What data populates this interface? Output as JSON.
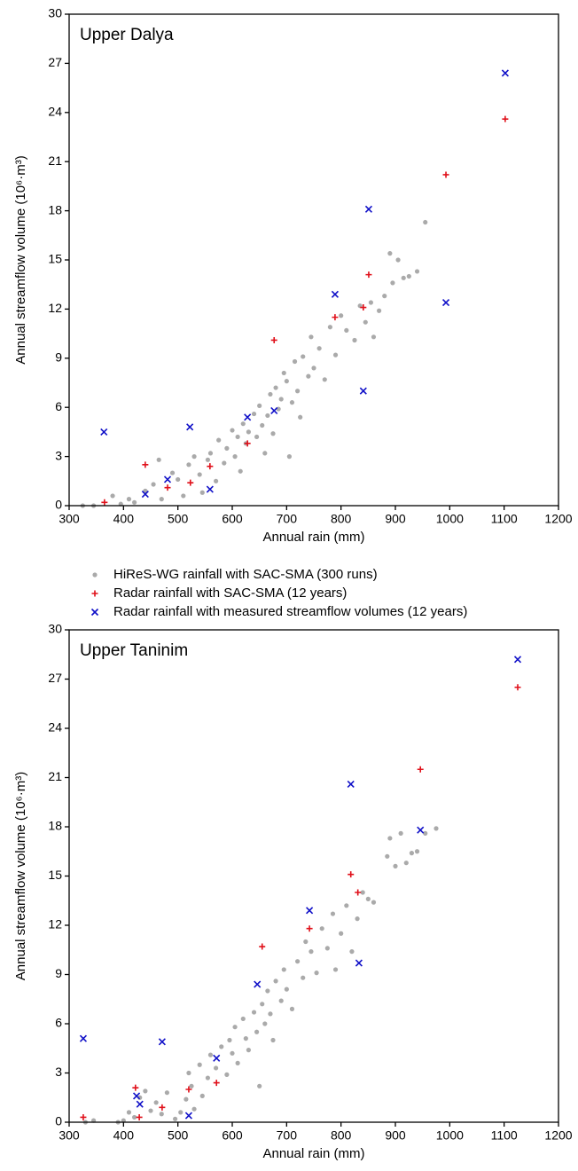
{
  "chart_data": [
    {
      "type": "scatter",
      "title": "Upper Dalya",
      "xlabel": "Annual rain (mm)",
      "ylabel": "Annual streamflow volume (10⁶·m³)",
      "xlim": [
        300,
        1200
      ],
      "xticks": [
        300,
        400,
        500,
        600,
        700,
        800,
        900,
        1000,
        1100,
        1200
      ],
      "ylim": [
        0,
        30
      ],
      "yticks": [
        0,
        3,
        6,
        9,
        12,
        15,
        18,
        21,
        24,
        27,
        30
      ],
      "legend": "below",
      "series": [
        {
          "name": "HiReS-WG rainfall with SAC-SMA (300 runs)",
          "color": "#aaaaaa",
          "marker": "dot",
          "x": [
            325,
            345,
            380,
            395,
            410,
            420,
            440,
            455,
            465,
            470,
            490,
            500,
            510,
            520,
            530,
            540,
            545,
            555,
            560,
            570,
            575,
            585,
            590,
            600,
            605,
            610,
            615,
            620,
            625,
            630,
            640,
            645,
            650,
            655,
            660,
            665,
            670,
            675,
            680,
            685,
            690,
            695,
            700,
            705,
            710,
            715,
            720,
            725,
            730,
            740,
            745,
            750,
            760,
            770,
            780,
            790,
            800,
            810,
            825,
            835,
            845,
            855,
            860,
            870,
            880,
            890,
            895,
            905,
            915,
            925,
            940,
            955
          ],
          "values": [
            0,
            0,
            0.6,
            0.1,
            0.4,
            0.2,
            0.9,
            1.3,
            2.8,
            0.4,
            2,
            1.6,
            0.6,
            2.5,
            3,
            1.9,
            0.8,
            2.8,
            3.2,
            1.5,
            4,
            2.6,
            3.5,
            4.6,
            3,
            4.2,
            2.1,
            5,
            3.8,
            4.5,
            5.6,
            4.2,
            6.1,
            4.9,
            3.2,
            5.5,
            6.8,
            4.4,
            7.2,
            5.9,
            6.5,
            8.1,
            7.6,
            3,
            6.3,
            8.8,
            7,
            5.4,
            9.1,
            7.9,
            10.3,
            8.4,
            9.6,
            7.7,
            10.9,
            9.2,
            11.6,
            10.7,
            10.1,
            12.2,
            11.2,
            12.4,
            10.3,
            11.9,
            12.8,
            15.4,
            13.6,
            15,
            13.9,
            14,
            14.3,
            17.3
          ]
        },
        {
          "name": "Radar rainfall with SAC-SMA (12 years)",
          "color": "#e0101a",
          "marker": "plus",
          "x": [
            365,
            440,
            481,
            523,
            559,
            628,
            677,
            789,
            841,
            851,
            993,
            1102
          ],
          "values": [
            0.2,
            2.5,
            1.1,
            1.4,
            2.4,
            3.8,
            10.1,
            11.5,
            12.1,
            14.1,
            20.2,
            23.6
          ]
        },
        {
          "name": "Radar rainfall with measured streamflow volumes (12 years)",
          "color": "#1010c8",
          "marker": "cross",
          "x": [
            364,
            440,
            481,
            522,
            559,
            628,
            677,
            789,
            841,
            851,
            993,
            1102
          ],
          "values": [
            4.5,
            0.7,
            1.6,
            4.8,
            1.0,
            5.4,
            5.8,
            12.9,
            7.0,
            18.1,
            12.4,
            26.4
          ]
        }
      ]
    },
    {
      "type": "scatter",
      "title": "Upper Taninim",
      "xlabel": "Annual rain (mm)",
      "ylabel": "Annual streamflow volume (10⁶·m³)",
      "xlim": [
        300,
        1200
      ],
      "xticks": [
        300,
        400,
        500,
        600,
        700,
        800,
        900,
        1000,
        1100,
        1200
      ],
      "ylim": [
        0,
        30
      ],
      "yticks": [
        0,
        3,
        6,
        9,
        12,
        15,
        18,
        21,
        24,
        27,
        30
      ],
      "series": [
        {
          "color": "#aaaaaa",
          "marker": "dot",
          "x": [
            330,
            345,
            390,
            400,
            410,
            420,
            430,
            440,
            450,
            460,
            470,
            480,
            495,
            505,
            515,
            520,
            525,
            530,
            540,
            545,
            555,
            560,
            570,
            580,
            590,
            595,
            600,
            605,
            610,
            620,
            625,
            630,
            640,
            645,
            650,
            655,
            660,
            665,
            670,
            675,
            680,
            690,
            695,
            700,
            710,
            720,
            730,
            735,
            745,
            755,
            765,
            775,
            785,
            790,
            800,
            810,
            820,
            830,
            840,
            850,
            860,
            885,
            890,
            900,
            910,
            920,
            930,
            940,
            955,
            975
          ],
          "values": [
            0,
            0.1,
            0,
            0.1,
            0.6,
            0.3,
            1.5,
            1.9,
            0.7,
            1.2,
            0.5,
            1.8,
            0.2,
            0.6,
            1.4,
            3,
            2.2,
            0.8,
            3.5,
            1.6,
            2.7,
            4.1,
            3.3,
            4.6,
            2.9,
            5,
            4.2,
            5.8,
            3.6,
            6.3,
            5.1,
            4.4,
            6.7,
            5.5,
            2.2,
            7.2,
            6,
            8,
            6.6,
            5,
            8.6,
            7.4,
            9.3,
            8.1,
            6.9,
            9.8,
            8.8,
            11,
            10.4,
            9.1,
            11.8,
            10.6,
            12.7,
            9.3,
            11.5,
            13.2,
            10.4,
            12.4,
            14,
            13.6,
            13.4,
            16.2,
            17.3,
            15.6,
            17.6,
            15.8,
            16.4,
            16.5,
            17.6,
            17.9
          ]
        },
        {
          "color": "#e0101a",
          "marker": "plus",
          "x": [
            326,
            422,
            429,
            471,
            520,
            571,
            655,
            742,
            818,
            831,
            946,
            1125
          ],
          "values": [
            0.3,
            2.1,
            0.3,
            0.9,
            2.0,
            2.4,
            10.7,
            11.8,
            15.1,
            14.0,
            21.5,
            26.5
          ]
        },
        {
          "color": "#1010c8",
          "marker": "cross",
          "x": [
            326,
            424,
            430,
            471,
            520,
            571,
            646,
            742,
            818,
            833,
            946,
            1125
          ],
          "values": [
            5.1,
            1.6,
            1.1,
            4.9,
            0.4,
            3.9,
            8.4,
            12.9,
            20.6,
            9.7,
            17.8,
            28.2
          ]
        }
      ]
    }
  ]
}
